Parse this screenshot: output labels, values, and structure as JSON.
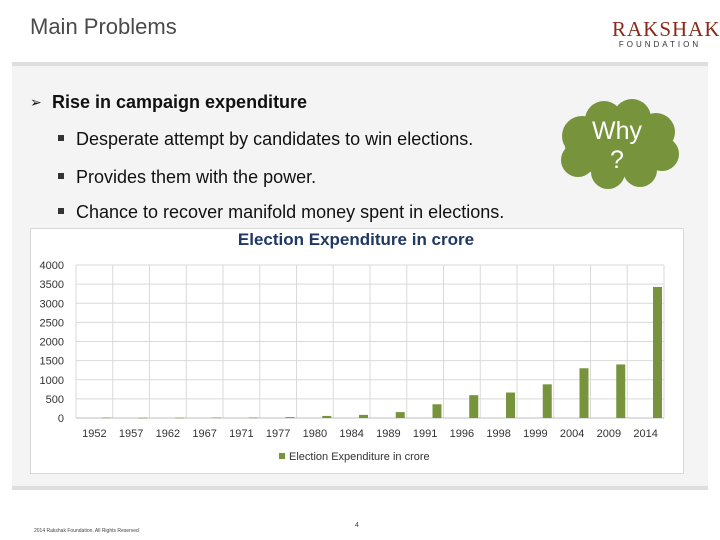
{
  "header": {
    "title": "Main Problems",
    "logo_main": "RAKSHAK",
    "logo_sub": "FOUNDATION"
  },
  "bullets": {
    "main": "Rise in campaign expenditure",
    "items": [
      "Desperate attempt by candidates to win elections.",
      "Provides them with the power.",
      "Chance to recover manifold money spent in elections."
    ]
  },
  "callout": {
    "line1": "Why",
    "line2": "?"
  },
  "colors": {
    "bar": "#77933c",
    "cloud": "#77933c",
    "title": "#1f3864"
  },
  "chart_data": {
    "type": "bar",
    "title": "Election Expenditure in crore",
    "categories": [
      "1952",
      "1957",
      "1962",
      "1967",
      "1971",
      "1977",
      "1980",
      "1984",
      "1989",
      "1991",
      "1996",
      "1998",
      "1999",
      "2004",
      "2009",
      "2014"
    ],
    "series": [
      {
        "name": "Election Expenditure in crore",
        "values": [
          10,
          6,
          7,
          11,
          12,
          23,
          54,
          81,
          154,
          359,
          597,
          666,
          880,
          1300,
          1400,
          3426
        ]
      }
    ],
    "ylim": [
      0,
      4000
    ],
    "yticks": [
      0,
      500,
      1000,
      1500,
      2000,
      2500,
      3000,
      3500,
      4000
    ],
    "grid": true,
    "legend": "bottom"
  },
  "footer": {
    "copyright": "2014 Rakshak Foundation. All Rights Reserved",
    "page_number": "4"
  }
}
